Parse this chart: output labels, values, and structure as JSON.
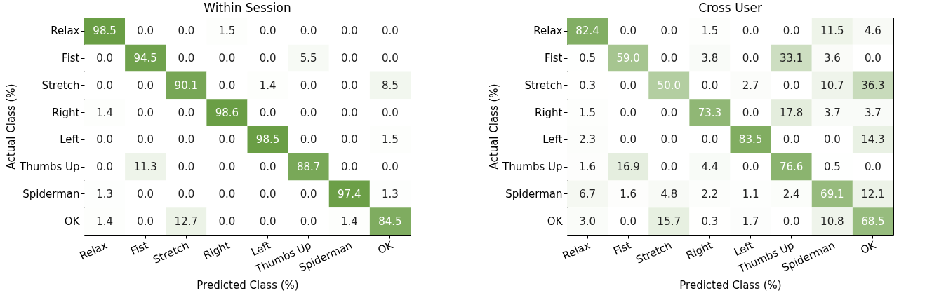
{
  "chart_data": [
    {
      "type": "heatmap",
      "title": "Within Session",
      "xlabel": "Predicted Class (%)",
      "ylabel": "Actual Class (%)",
      "colors": [
        "#ffffff",
        "#6a9e45"
      ],
      "categories": [
        "Relax",
        "Fist",
        "Stretch",
        "Right",
        "Left",
        "Thumbs Up",
        "Spiderman",
        "OK"
      ],
      "y_categories": [
        "Relax",
        "Fist",
        "Stretch",
        "Right",
        "Left",
        "Thumbs Up",
        "Spiderman",
        "OK"
      ],
      "cells": [
        [
          98.5,
          0.0,
          0.0,
          1.5,
          0.0,
          0.0,
          0.0,
          0.0
        ],
        [
          0.0,
          94.5,
          0.0,
          0.0,
          0.0,
          5.5,
          0.0,
          0.0
        ],
        [
          0.0,
          0.0,
          90.1,
          0.0,
          1.4,
          0.0,
          0.0,
          8.5
        ],
        [
          1.4,
          0.0,
          0.0,
          98.6,
          0.0,
          0.0,
          0.0,
          0.0
        ],
        [
          0.0,
          0.0,
          0.0,
          0.0,
          98.5,
          0.0,
          0.0,
          1.5
        ],
        [
          0.0,
          11.3,
          0.0,
          0.0,
          0.0,
          88.7,
          0.0,
          0.0
        ],
        [
          1.3,
          0.0,
          0.0,
          0.0,
          0.0,
          0.0,
          97.4,
          1.3
        ],
        [
          1.4,
          0.0,
          12.7,
          0.0,
          0.0,
          0.0,
          1.4,
          84.5
        ]
      ],
      "cell_labels": [
        [
          "98.5",
          "0.0",
          "0.0",
          "1.5",
          "0.0",
          "0.0",
          "0.0",
          "0.0"
        ],
        [
          "0.0",
          "94.5",
          "0.0",
          "0.0",
          "0.0",
          "5.5",
          "0.0",
          "0.0"
        ],
        [
          "0.0",
          "0.0",
          "90.1",
          "0.0",
          "1.4",
          "0.0",
          "0.0",
          "8.5"
        ],
        [
          "1.4",
          "0.0",
          "0.0",
          "98.6",
          "0.0",
          "0.0",
          "0.0",
          "0.0"
        ],
        [
          "0.0",
          "0.0",
          "0.0",
          "0.0",
          "98.5",
          "0.0",
          "0.0",
          "1.5"
        ],
        [
          "0.0",
          "11.3",
          "0.0",
          "0.0",
          "0.0",
          "88.7",
          "0.0",
          "0.0"
        ],
        [
          "1.3",
          "0.0",
          "0.0",
          "0.0",
          "0.0",
          "0.0",
          "97.4",
          "1.3"
        ],
        [
          "1.4",
          "0.0",
          "12.7",
          "0.0",
          "0.0",
          "0.0",
          "1.4",
          "84.5"
        ]
      ]
    },
    {
      "type": "heatmap",
      "title": "Cross User",
      "xlabel": "Predicted Class (%)",
      "ylabel": "Actual Class (%)",
      "colors": [
        "#ffffff",
        "#6a9e45"
      ],
      "categories": [
        "Relax",
        "Fist",
        "Stretch",
        "Right",
        "Left",
        "Thumbs Up",
        "Spiderman",
        "OK"
      ],
      "y_categories": [
        "Relax",
        "Fist",
        "Stretch",
        "Right",
        "Left",
        "Thumbs Up",
        "Spiderman",
        "OK"
      ],
      "cells": [
        [
          82.4,
          0.0,
          0.0,
          1.5,
          0.0,
          0.0,
          11.5,
          4.6
        ],
        [
          0.5,
          59.0,
          0.0,
          3.8,
          0.0,
          33.1,
          3.6,
          0.0
        ],
        [
          0.3,
          0.0,
          50.0,
          0.0,
          2.7,
          0.0,
          10.7,
          36.3
        ],
        [
          1.5,
          0.0,
          0.0,
          73.3,
          0.0,
          17.8,
          3.7,
          3.7
        ],
        [
          2.3,
          0.0,
          0.0,
          0.0,
          83.5,
          0.0,
          0.0,
          14.3
        ],
        [
          1.6,
          16.9,
          0.0,
          4.4,
          0.0,
          76.6,
          0.5,
          0.0
        ],
        [
          6.7,
          1.6,
          4.8,
          2.2,
          1.1,
          2.4,
          69.1,
          12.1
        ],
        [
          3.0,
          0.0,
          15.7,
          0.3,
          1.7,
          0.0,
          10.8,
          68.5
        ]
      ],
      "cell_labels": [
        [
          "82.4",
          "0.0",
          "0.0",
          "1.5",
          "0.0",
          "0.0",
          "11.5",
          "4.6"
        ],
        [
          "0.5",
          "59.0",
          "0.0",
          "3.8",
          "0.0",
          "33.1",
          "3.6",
          "0.0"
        ],
        [
          "0.3",
          "0.0",
          "50.0",
          "0.0",
          "2.7",
          "0.0",
          "10.7",
          "36.3"
        ],
        [
          "1.5",
          "0.0",
          "0.0",
          "73.3",
          "0.0",
          "17.8",
          "3.7",
          "3.7"
        ],
        [
          "2.3",
          "0.0",
          "0.0",
          "0.0",
          "83.5",
          "0.0",
          "0.0",
          "14.3"
        ],
        [
          "1.6",
          "16.9",
          "0.0",
          "4.4",
          "0.0",
          "76.6",
          "0.5",
          "0.0"
        ],
        [
          "6.7",
          "1.6",
          "4.8",
          "2.2",
          "1.1",
          "2.4",
          "69.1",
          "12.1"
        ],
        [
          "3.0",
          "0.0",
          "15.7",
          "0.3",
          "1.7",
          "0.0",
          "10.8",
          "68.5"
        ]
      ]
    }
  ]
}
